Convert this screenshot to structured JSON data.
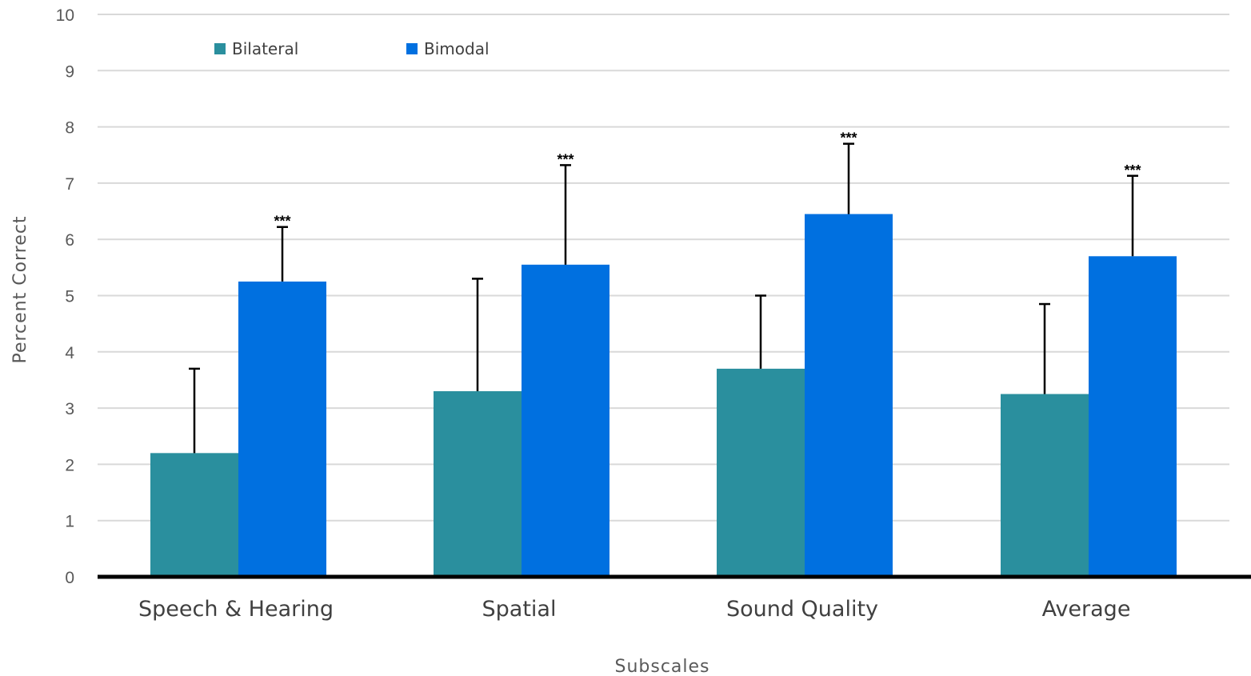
{
  "chart_data": {
    "type": "bar",
    "xlabel": "Subscales",
    "ylabel": "Percent Correct",
    "ylim": [
      0,
      10
    ],
    "yticks": [
      0,
      1,
      2,
      3,
      4,
      5,
      6,
      7,
      8,
      9,
      10
    ],
    "grid": true,
    "legend_position": "top-left",
    "categories": [
      "Speech & Hearing",
      "Spatial",
      "Sound Quality",
      "Average"
    ],
    "series": [
      {
        "name": "Bilateral",
        "color": "#2a8f9e",
        "values": [
          2.2,
          3.3,
          3.7,
          3.25
        ],
        "error": [
          1.5,
          2.0,
          1.3,
          1.6
        ]
      },
      {
        "name": "Bimodal",
        "color": "#0070e0",
        "values": [
          5.25,
          5.55,
          6.45,
          5.7
        ],
        "error": [
          0.97,
          1.77,
          1.25,
          1.43
        ]
      }
    ],
    "annotations": [
      {
        "series": "Bimodal",
        "category": "Speech & Hearing",
        "text": "***"
      },
      {
        "series": "Bimodal",
        "category": "Spatial",
        "text": "***"
      },
      {
        "series": "Bimodal",
        "category": "Sound Quality",
        "text": "***"
      },
      {
        "series": "Bimodal",
        "category": "Average",
        "text": "***"
      }
    ]
  }
}
